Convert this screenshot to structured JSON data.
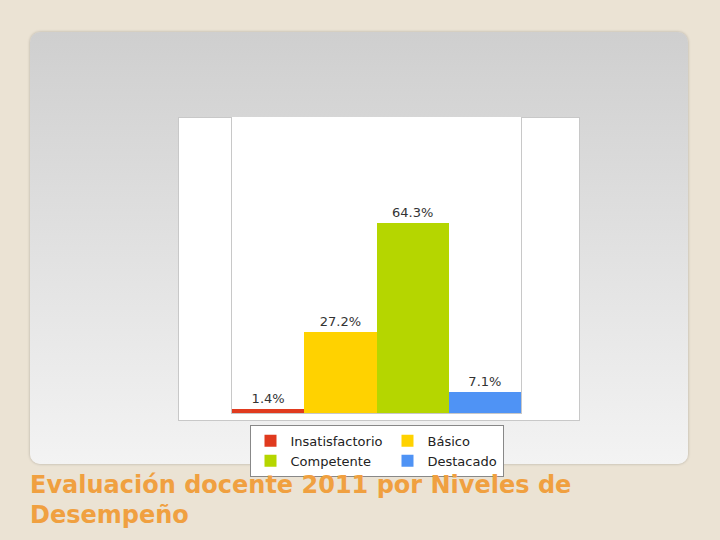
{
  "chart_data": {
    "type": "bar",
    "title": "Evaluación docente 2011 por Niveles de Desempeño",
    "categories": [
      "Insatisfactorio",
      "Básico",
      "Competente",
      "Destacado"
    ],
    "values": [
      1.4,
      27.2,
      64.3,
      7.1
    ],
    "value_labels": [
      "1.4%",
      "27.2%",
      "64.3%",
      "7.1%"
    ],
    "colors": [
      "#e03a1e",
      "#ffd200",
      "#b5d600",
      "#4f93f5"
    ],
    "ylim": [
      0,
      100
    ],
    "data_labels": true,
    "tick_labels": false,
    "grid": false,
    "legend": "bottom"
  }
}
